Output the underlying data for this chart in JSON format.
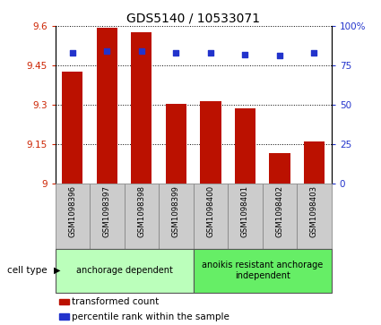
{
  "title": "GDS5140 / 10533071",
  "categories": [
    "GSM1098396",
    "GSM1098397",
    "GSM1098398",
    "GSM1098399",
    "GSM1098400",
    "GSM1098401",
    "GSM1098402",
    "GSM1098403"
  ],
  "bar_values": [
    9.425,
    9.595,
    9.575,
    9.305,
    9.315,
    9.285,
    9.115,
    9.16
  ],
  "percentile_values": [
    83,
    84,
    84,
    83,
    83,
    82,
    81,
    83
  ],
  "ymin": 9.0,
  "ymax": 9.6,
  "yticks": [
    9.0,
    9.15,
    9.3,
    9.45,
    9.6
  ],
  "ytick_labels": [
    "9",
    "9.15",
    "9.3",
    "9.45",
    "9.6"
  ],
  "y2min": 0,
  "y2max": 100,
  "y2ticks": [
    0,
    25,
    50,
    75,
    100
  ],
  "y2tick_labels": [
    "0",
    "25",
    "50",
    "75",
    "100%"
  ],
  "bar_color": "#BB1100",
  "dot_color": "#2233CC",
  "bar_width": 0.6,
  "groups": [
    {
      "label": "anchorage dependent",
      "indices": [
        0,
        1,
        2,
        3
      ],
      "color": "#BBFFBB"
    },
    {
      "label": "anoikis resistant anchorage\nindependent",
      "indices": [
        4,
        5,
        6,
        7
      ],
      "color": "#66EE66"
    }
  ],
  "cell_type_label": "cell type",
  "legend_items": [
    {
      "label": "transformed count",
      "color": "#BB1100"
    },
    {
      "label": "percentile rank within the sample",
      "color": "#2233CC"
    }
  ],
  "left_color": "#CC2200",
  "right_color": "#2233CC",
  "tick_area_color": "#CCCCCC",
  "bg_color": "#FFFFFF"
}
